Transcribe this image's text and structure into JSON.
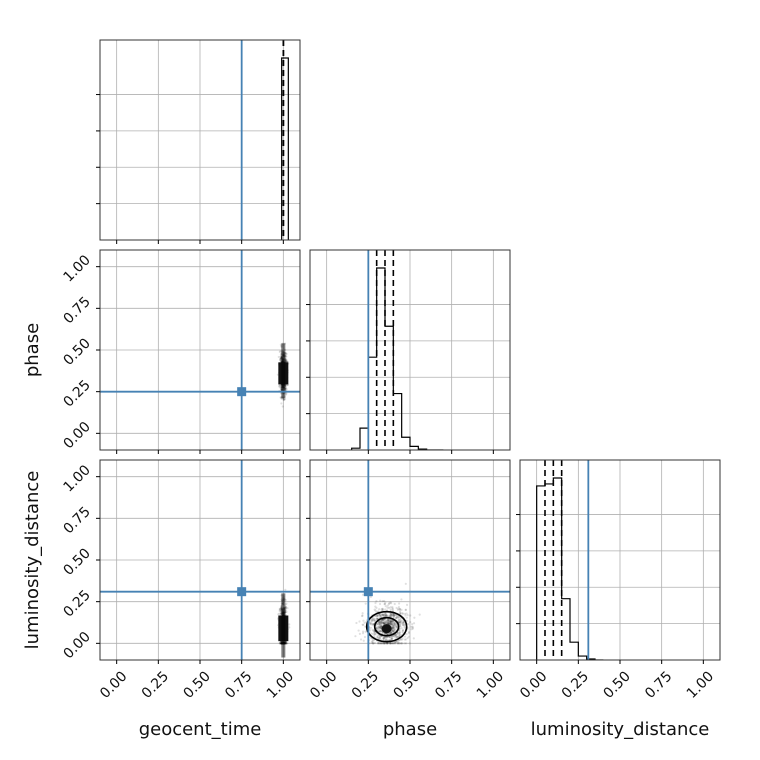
{
  "chart_data": {
    "type": "corner",
    "parameters": [
      "geocent_time",
      "phase",
      "luminosity_distance"
    ],
    "axis_labels": {
      "x": [
        "geocent_time",
        "phase",
        "luminosity_distance"
      ],
      "y": [
        "phase",
        "luminosity_distance"
      ]
    },
    "ticks": [
      0.0,
      0.25,
      0.5,
      0.75,
      1.0
    ],
    "tick_labels": [
      "0.00",
      "0.25",
      "0.50",
      "0.75",
      "1.00"
    ],
    "xlim": [
      -0.1,
      1.1
    ],
    "ylim": [
      -0.1,
      1.1
    ],
    "grid": true,
    "truths": {
      "geocent_time": 0.75,
      "phase": 0.25,
      "luminosity_distance": 0.31
    },
    "truth_color": "#4682b4",
    "histogram_color": "#000000",
    "diagonal": [
      {
        "parameter": "geocent_time",
        "bin_edges": [
          0.99,
          1.03
        ],
        "counts": [
          1.0
        ],
        "quantiles": [
          1.0,
          1.0,
          1.0
        ]
      },
      {
        "parameter": "phase",
        "bin_edges": [
          0.15,
          0.2,
          0.25,
          0.3,
          0.35,
          0.4,
          0.45,
          0.5,
          0.55,
          0.6,
          0.65,
          0.7
        ],
        "counts": [
          0.01,
          0.12,
          0.51,
          1.0,
          0.68,
          0.31,
          0.07,
          0.02,
          0.005,
          0.0,
          0.0
        ],
        "quantiles": [
          0.3,
          0.35,
          0.4
        ]
      },
      {
        "parameter": "luminosity_distance",
        "bin_edges": [
          0.0,
          0.05,
          0.1,
          0.15,
          0.2,
          0.25,
          0.3,
          0.35,
          0.4
        ],
        "counts": [
          0.88,
          0.89,
          0.92,
          0.31,
          0.09,
          0.02,
          0.005,
          0.0
        ],
        "quantiles": [
          0.05,
          0.1,
          0.15
        ]
      }
    ],
    "scatter_panels": [
      {
        "x": "geocent_time",
        "y": "phase",
        "center": [
          1.0,
          0.36
        ],
        "spread": [
          0.01,
          0.06
        ]
      },
      {
        "x": "geocent_time",
        "y": "luminosity_distance",
        "center": [
          1.0,
          0.09
        ],
        "spread": [
          0.01,
          0.07
        ]
      },
      {
        "x": "phase",
        "y": "luminosity_distance",
        "center": [
          0.36,
          0.1
        ],
        "spread": [
          0.06,
          0.06
        ]
      }
    ]
  }
}
